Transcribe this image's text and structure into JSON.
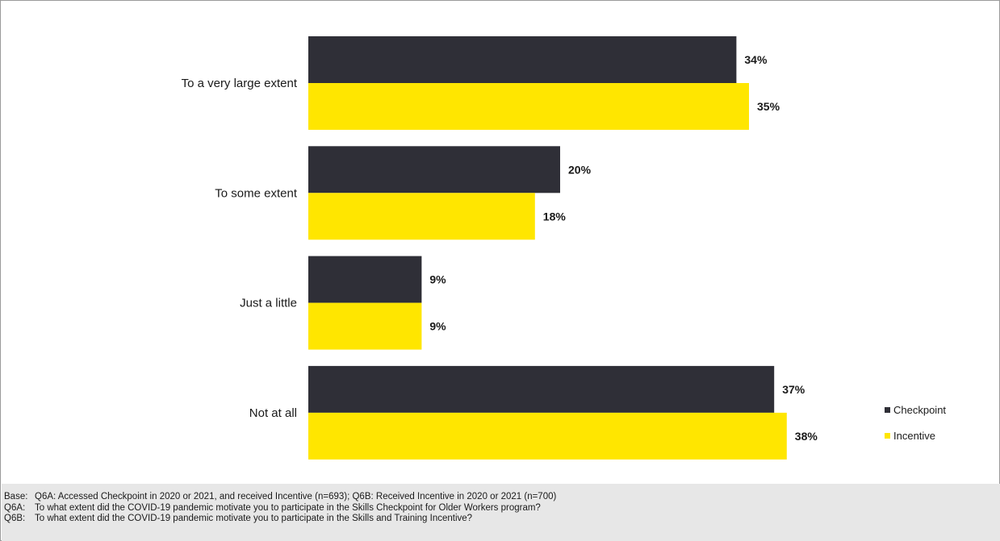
{
  "chart_data": {
    "type": "bar",
    "orientation": "horizontal",
    "categories": [
      "To a very large extent",
      "To some extent",
      "Just a little",
      "Not at all"
    ],
    "series": [
      {
        "name": "Checkpoint",
        "values": [
          34,
          20,
          9,
          37
        ],
        "labels": [
          "34%",
          "20%",
          "9%",
          "37%"
        ],
        "color": "#2f2f37"
      },
      {
        "name": "Incentive",
        "values": [
          35,
          18,
          9,
          38
        ],
        "labels": [
          "35%",
          "18%",
          "9%",
          "38%"
        ],
        "color": "#ffe600"
      }
    ],
    "xlim": [
      0,
      40
    ],
    "grid": false,
    "legend": "bottom-right",
    "title": "",
    "xlabel": "",
    "ylabel": ""
  },
  "notes": [
    {
      "key": "Base:",
      "text": "Q6A: Accessed Checkpoint in 2020 or 2021, and received Incentive (n=693); Q6B: Received Incentive in 2020 or 2021 (n=700)"
    },
    {
      "key": "Q6A:",
      "text": "To what extent did the COVID-19 pandemic motivate you to participate in the Skills Checkpoint for Older Workers program?"
    },
    {
      "key": "Q6B:",
      "text": "To what extent did the COVID-19 pandemic motivate you to participate in the Skills and Training Incentive?"
    }
  ]
}
